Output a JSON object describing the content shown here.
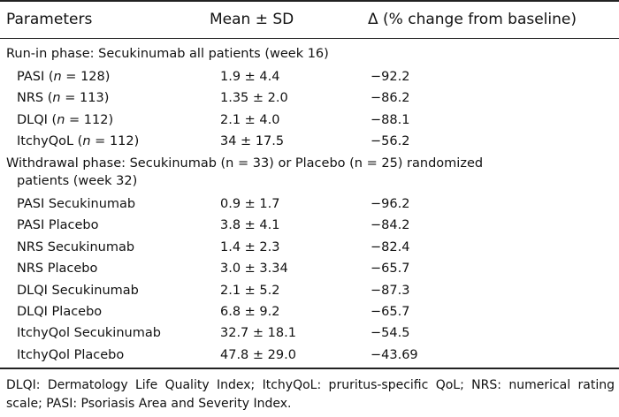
{
  "table": {
    "headers": {
      "parameters": "Parameters",
      "mean_sd": "Mean ± SD",
      "delta": "Δ (% change from baseline)"
    },
    "sections": [
      {
        "title": "Run-in phase: Secukinumab all patients (week 16)",
        "rows": [
          {
            "param": "PASI",
            "n": "128",
            "mean": "1.9 ± 4.4",
            "delta": "−92.2"
          },
          {
            "param": "NRS",
            "n": "113",
            "mean": "1.35 ± 2.0",
            "delta": "−86.2"
          },
          {
            "param": "DLQI",
            "n": "112",
            "mean": "2.1 ± 4.0",
            "delta": "−88.1"
          },
          {
            "param": "ItchyQoL",
            "n": "112",
            "mean": "34 ± 17.5",
            "delta": "−56.2"
          }
        ]
      },
      {
        "title_line1": "Withdrawal phase: Secukinumab (n = 33) or Placebo (n = 25) randomized",
        "title_line2": "patients (week 32)",
        "rows": [
          {
            "param": "PASI Secukinumab",
            "mean": "0.9 ± 1.7",
            "delta": "−96.2"
          },
          {
            "param": "PASI Placebo",
            "mean": "3.8 ± 4.1",
            "delta": "−84.2"
          },
          {
            "param": "NRS Secukinumab",
            "mean": "1.4 ± 2.3",
            "delta": "−82.4"
          },
          {
            "param": "NRS Placebo",
            "mean": "3.0 ± 3.34",
            "delta": "−65.7"
          },
          {
            "param": "DLQI Secukinumab",
            "mean": "2.1 ± 5.2",
            "delta": "−87.3"
          },
          {
            "param": "DLQI Placebo",
            "mean": "6.8 ± 9.2",
            "delta": "−65.7"
          },
          {
            "param": "ItchyQol Secukinumab",
            "mean": "32.7 ± 18.1",
            "delta": "−54.5"
          },
          {
            "param": "ItchyQol Placebo",
            "mean": "47.8 ± 29.0",
            "delta": "−43.69"
          }
        ]
      }
    ]
  },
  "footnote": "DLQI: Dermatology Life Quality Index; ItchyQoL: pruritus-specific QoL; NRS: numerical rating scale; PASI: Psoriasis Area and Severity Index.",
  "n_symbol": "n",
  "eq": " = "
}
